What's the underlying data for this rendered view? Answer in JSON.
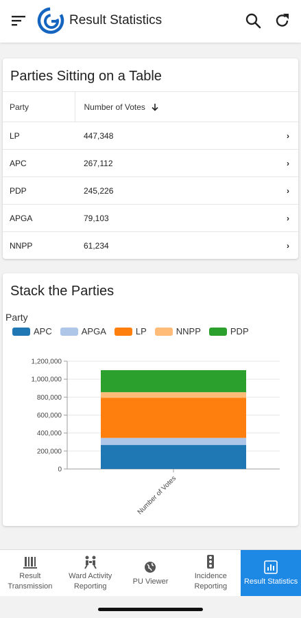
{
  "app": {
    "title": "Result Statistics",
    "icons": [
      "menu-icon",
      "search-icon",
      "refresh-icon"
    ]
  },
  "table_card": {
    "title": "Parties Sitting on a Table",
    "columns": {
      "party": "Party",
      "votes": "Number of Votes"
    },
    "rows": [
      {
        "party": "LP",
        "votes": "447,348"
      },
      {
        "party": "APC",
        "votes": "267,112"
      },
      {
        "party": "PDP",
        "votes": "245,226"
      },
      {
        "party": "APGA",
        "votes": "79,103"
      },
      {
        "party": "NNPP",
        "votes": "61,234"
      }
    ]
  },
  "chart_card": {
    "title": "Stack the Parties",
    "legend_title": "Party",
    "legend": [
      {
        "label": "APC",
        "color": "#1f77b4"
      },
      {
        "label": "APGA",
        "color": "#aec7e8"
      },
      {
        "label": "LP",
        "color": "#ff7f0e"
      },
      {
        "label": "NNPP",
        "color": "#ffbb78"
      },
      {
        "label": "PDP",
        "color": "#2ca02c"
      }
    ]
  },
  "chart_data": {
    "type": "bar",
    "stacked": true,
    "categories": [
      "Number of Votes"
    ],
    "series": [
      {
        "name": "APC",
        "values": [
          267112
        ],
        "color": "#1f77b4"
      },
      {
        "name": "APGA",
        "values": [
          79103
        ],
        "color": "#aec7e8"
      },
      {
        "name": "LP",
        "values": [
          447348
        ],
        "color": "#ff7f0e"
      },
      {
        "name": "NNPP",
        "values": [
          61234
        ],
        "color": "#ffbb78"
      },
      {
        "name": "PDP",
        "values": [
          245226
        ],
        "color": "#2ca02c"
      }
    ],
    "yticks": [
      "0",
      "200,000",
      "400,000",
      "600,000",
      "800,000",
      "1,000,000",
      "1,200,000"
    ],
    "ylim": [
      0,
      1200000
    ],
    "grid": true,
    "legend_position": "top-left"
  },
  "bottom_nav": [
    {
      "label": "Result\nTransmission",
      "icon": "transmission-icon",
      "active": false
    },
    {
      "label": "Ward Activity\nReporting",
      "icon": "people-icon",
      "active": false
    },
    {
      "label": "PU Viewer",
      "icon": "globe-icon",
      "active": false
    },
    {
      "label": "Incidence\nReporting",
      "icon": "traffic-light-icon",
      "active": false
    },
    {
      "label": "Result Statistics",
      "icon": "bar-chart-icon",
      "active": true
    }
  ]
}
